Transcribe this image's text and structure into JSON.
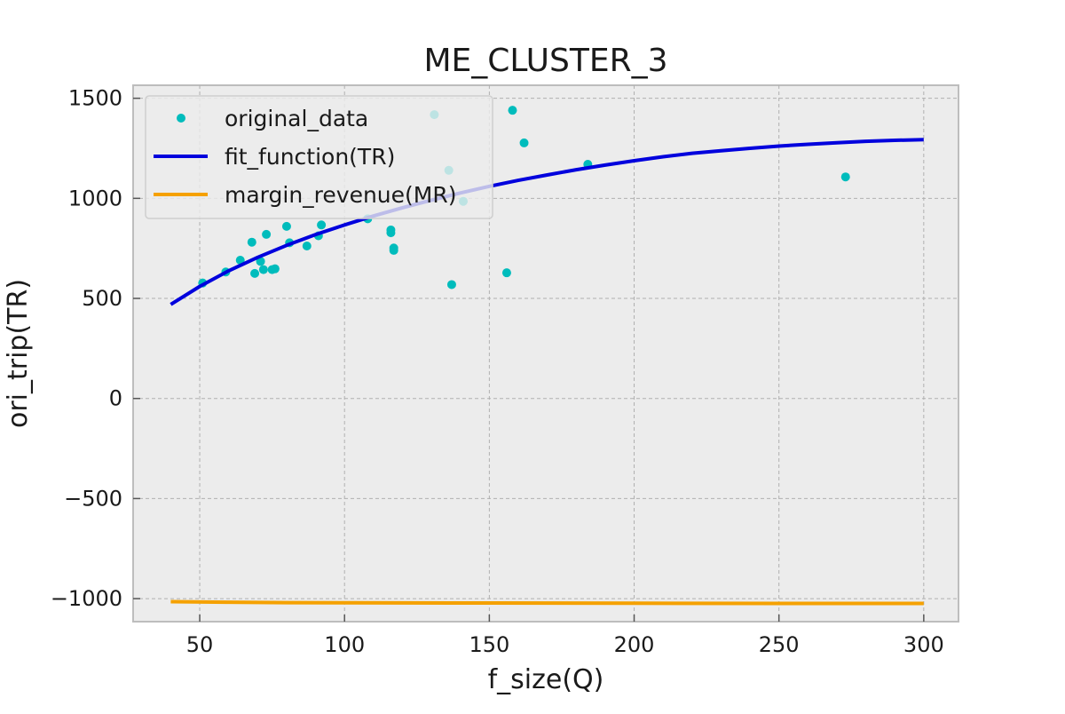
{
  "chart_data": {
    "type": "scatter",
    "title": "ME_CLUSTER_3",
    "xlabel": "f_size(Q)",
    "ylabel": "ori_trip(TR)",
    "xlim": [
      27,
      312
    ],
    "ylim": [
      -1115,
      1565
    ],
    "xticks": [
      50,
      100,
      150,
      200,
      250,
      300
    ],
    "yticks": [
      -1000,
      -500,
      0,
      500,
      1000,
      1500
    ],
    "xtick_labels": [
      "50",
      "100",
      "150",
      "200",
      "250",
      "300"
    ],
    "ytick_labels": [
      "−1000",
      "−500",
      "0",
      "500",
      "1000",
      "1500"
    ],
    "grid": true,
    "legend_position": "upper-left",
    "series": [
      {
        "name": "original_data",
        "kind": "scatter",
        "color": "#00bcbc",
        "points": [
          [
            51,
            577
          ],
          [
            59,
            632
          ],
          [
            64,
            691
          ],
          [
            68,
            781
          ],
          [
            69,
            625
          ],
          [
            71,
            685
          ],
          [
            72,
            644
          ],
          [
            73,
            820
          ],
          [
            75,
            644
          ],
          [
            76,
            648
          ],
          [
            80,
            860
          ],
          [
            81,
            778
          ],
          [
            87,
            762
          ],
          [
            91,
            813
          ],
          [
            92,
            867
          ],
          [
            108,
            898
          ],
          [
            116,
            842
          ],
          [
            116,
            828
          ],
          [
            117,
            752
          ],
          [
            117,
            740
          ],
          [
            131,
            1418
          ],
          [
            136,
            1140
          ],
          [
            137,
            569
          ],
          [
            141,
            985
          ],
          [
            156,
            628
          ],
          [
            158,
            1440
          ],
          [
            162,
            1277
          ],
          [
            184,
            1170
          ],
          [
            273,
            1107
          ]
        ]
      },
      {
        "name": "fit_function(TR)",
        "kind": "line",
        "color": "#0000dd",
        "x": [
          40,
          50,
          60,
          70,
          80,
          90,
          100,
          110,
          120,
          130,
          140,
          150,
          160,
          170,
          180,
          190,
          200,
          210,
          220,
          230,
          240,
          250,
          260,
          270,
          280,
          290,
          300
        ],
        "y": [
          470,
          560,
          638,
          705,
          765,
          819,
          867,
          912,
          953,
          991,
          1027,
          1060,
          1090,
          1117,
          1143,
          1166,
          1188,
          1208,
          1225,
          1238,
          1250,
          1261,
          1270,
          1278,
          1285,
          1290,
          1293
        ]
      },
      {
        "name": "margin_revenue(MR)",
        "kind": "line",
        "color": "#f5a100",
        "x": [
          40,
          60,
          80,
          100,
          150,
          200,
          250,
          300
        ],
        "y": [
          -1015,
          -1018,
          -1020,
          -1021,
          -1022,
          -1023,
          -1024,
          -1024
        ]
      }
    ]
  }
}
